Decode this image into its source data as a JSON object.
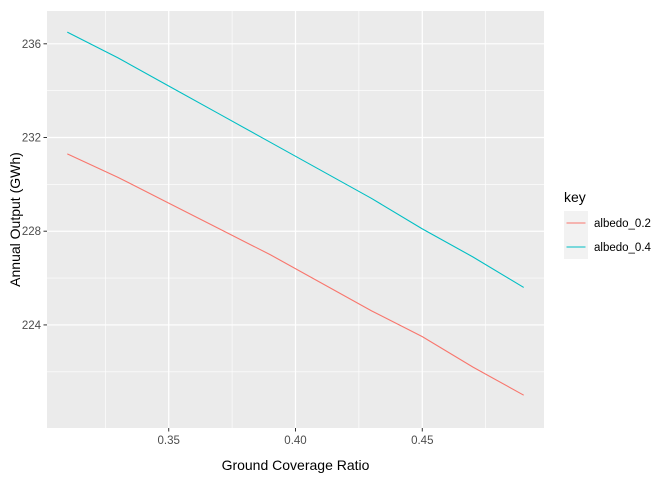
{
  "chart_data": {
    "type": "line",
    "xlabel": "Ground Coverage Ratio",
    "ylabel": "Annual Output (GWh)",
    "xlim": [
      0.302,
      0.498
    ],
    "ylim": [
      219.6,
      237.4
    ],
    "x_ticks": [
      0.35,
      0.4,
      0.45
    ],
    "x_tick_labels": [
      "0.35",
      "0.40",
      "0.45"
    ],
    "y_ticks": [
      224,
      228,
      232,
      236
    ],
    "y_tick_labels": [
      "224",
      "228",
      "232",
      "236"
    ],
    "grid": true,
    "legend": {
      "title": "key",
      "position": "right"
    },
    "series": [
      {
        "name": "albedo_0.2",
        "color": "#F8766D",
        "x": [
          0.31,
          0.33,
          0.35,
          0.37,
          0.39,
          0.41,
          0.43,
          0.45,
          0.47,
          0.49
        ],
        "values": [
          231.3,
          230.3,
          229.2,
          228.1,
          227.0,
          225.8,
          224.6,
          223.5,
          222.2,
          221.0
        ]
      },
      {
        "name": "albedo_0.4",
        "color": "#00BFC4",
        "x": [
          0.31,
          0.33,
          0.35,
          0.37,
          0.39,
          0.41,
          0.43,
          0.45,
          0.47,
          0.49
        ],
        "values": [
          236.5,
          235.4,
          234.2,
          233.0,
          231.8,
          230.6,
          229.4,
          228.1,
          226.9,
          225.6
        ]
      }
    ]
  }
}
